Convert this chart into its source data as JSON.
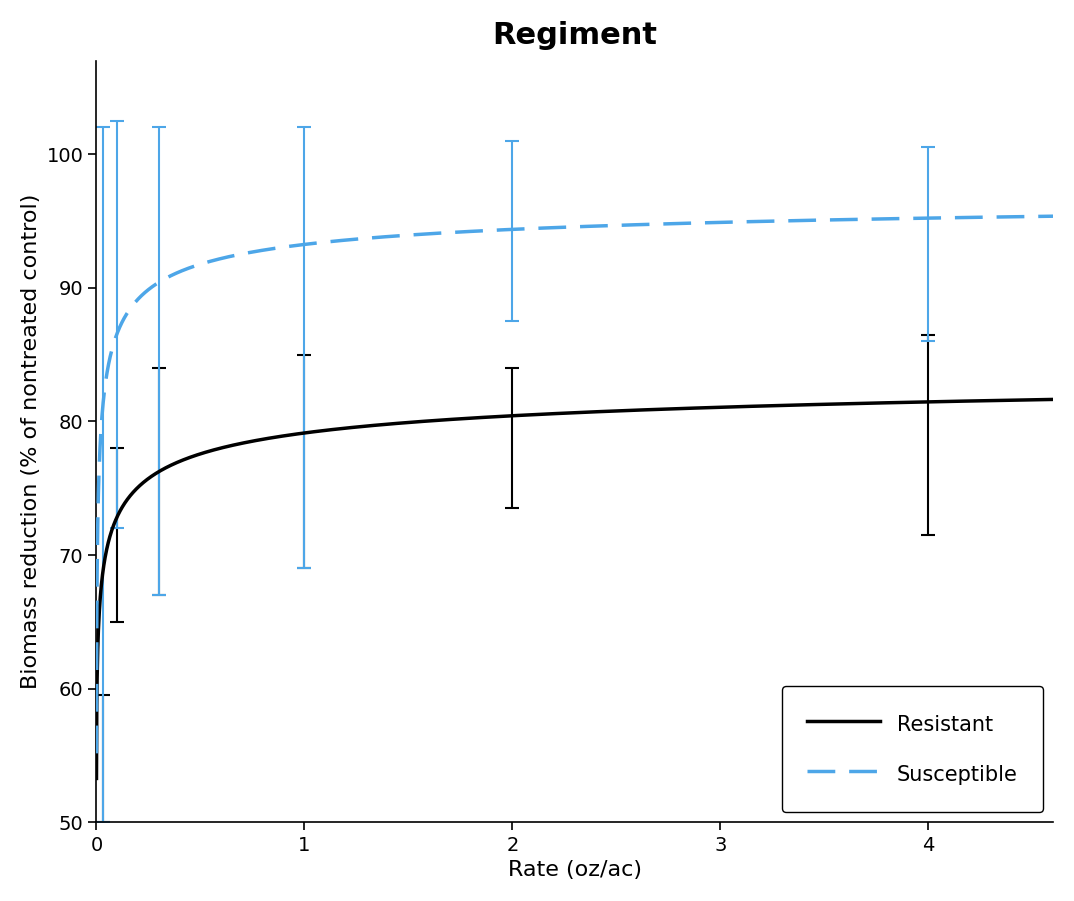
{
  "title": "Regiment",
  "xlabel": "Rate (oz/ac)",
  "ylabel": "Biomass reduction (% of nontreated control)",
  "xlim": [
    0,
    4.6
  ],
  "ylim": [
    50,
    107
  ],
  "yticks": [
    50,
    60,
    70,
    80,
    90,
    100
  ],
  "xticks": [
    0,
    1,
    2,
    3,
    4
  ],
  "resistant": {
    "label": "Resistant",
    "color": "#000000",
    "linestyle": "solid",
    "linewidth": 2.5,
    "lower": 50.0,
    "upper": 85.0,
    "ED50": 0.022,
    "slope": 0.42
  },
  "susceptible": {
    "label": "Susceptible",
    "color": "#4da6e8",
    "linestyle": "dashed",
    "linewidth": 2.5,
    "lower": 50.0,
    "upper": 97.5,
    "ED50": 0.008,
    "slope": 0.48
  },
  "error_bars": {
    "resistant": {
      "x": [
        0.03,
        0.1,
        0.3,
        1.0,
        2.0,
        4.0
      ],
      "center": [
        59.5,
        72.5,
        76.5,
        80.5,
        81.5,
        83.5
      ],
      "lo": [
        9.5,
        7.5,
        9.5,
        11.5,
        8.0,
        12.0
      ],
      "hi": [
        0.0,
        5.5,
        7.5,
        4.5,
        2.5,
        3.0
      ]
    },
    "susceptible": {
      "x": [
        0.03,
        0.1,
        0.3,
        1.0,
        2.0,
        4.0
      ],
      "center": [
        77.0,
        88.0,
        93.5,
        95.5,
        95.5,
        96.5
      ],
      "lo": [
        27.0,
        16.0,
        26.5,
        26.5,
        8.0,
        10.5
      ],
      "hi": [
        25.0,
        14.5,
        8.5,
        6.5,
        5.5,
        4.0
      ]
    }
  },
  "background_color": "#ffffff",
  "title_fontsize": 22,
  "title_fontweight": "bold",
  "axis_label_fontsize": 16,
  "tick_fontsize": 14,
  "legend_fontsize": 15,
  "capsize": 5,
  "elinewidth": 1.5,
  "capthick": 1.5
}
